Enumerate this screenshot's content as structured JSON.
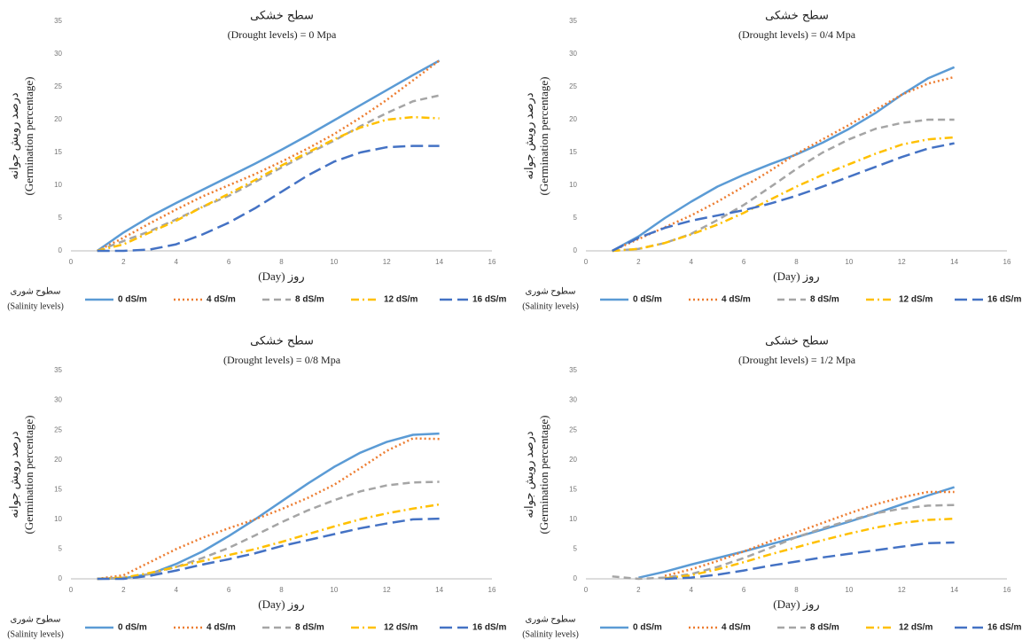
{
  "chart_data": [
    {
      "type": "line",
      "title": "سطح خشکی",
      "subtitle": "(Drought levels) = 0 Mpa",
      "ylabel": [
        "درصد رویش جوانه",
        "(Germination percentage)"
      ],
      "xlabel": "(Day) روز",
      "legend_title": [
        "سطوح شوری",
        "(Salinity levels)"
      ],
      "xlim": [
        0,
        16
      ],
      "xticks": [
        0,
        2,
        4,
        6,
        8,
        10,
        12,
        14,
        16
      ],
      "ylim": [
        0,
        35
      ],
      "yticks": [
        0,
        5,
        10,
        15,
        20,
        25,
        30,
        35
      ],
      "grid": false,
      "x": [
        1,
        2,
        3,
        4,
        5,
        6,
        7,
        8,
        9,
        10,
        11,
        12,
        13,
        14
      ],
      "series": [
        {
          "name": "0 dS/m",
          "color": "#5b9bd5",
          "line_style": "solid",
          "values": [
            0,
            2.8,
            5.2,
            7.3,
            9.3,
            11.3,
            13.3,
            15.4,
            17.6,
            19.9,
            22.2,
            24.5,
            26.8,
            29
          ]
        },
        {
          "name": "4 dS/m",
          "color": "#ed7d31",
          "line_style": "dotted",
          "values": [
            0,
            2,
            4.2,
            6.3,
            8.3,
            10,
            11.7,
            13.6,
            15.6,
            17.8,
            20.3,
            23,
            26,
            29
          ]
        },
        {
          "name": "8 dS/m",
          "color": "#a5a5a5",
          "line_style": "dashed",
          "values": [
            0,
            1.5,
            3,
            4.8,
            6.7,
            8.4,
            10.5,
            12.7,
            14.8,
            16.8,
            19,
            21,
            22.8,
            23.7
          ]
        },
        {
          "name": "12 dS/m",
          "color": "#ffc000",
          "line_style": "dashdot",
          "values": [
            0,
            1,
            2.8,
            4.6,
            6.7,
            8.7,
            10.8,
            13,
            15,
            17,
            18.8,
            20,
            20.4,
            20.2
          ]
        },
        {
          "name": "16 dS/m",
          "color": "#4472c4",
          "line_style": "longdash",
          "values": [
            0,
            0,
            0.2,
            1,
            2.5,
            4.3,
            6.5,
            9,
            11.5,
            13.6,
            15,
            15.8,
            16,
            16
          ]
        }
      ]
    },
    {
      "type": "line",
      "title": "سطح خشکی",
      "subtitle": "(Drought levels) = 0/4 Mpa",
      "ylabel": [
        "درصد رویش جوانه",
        "(Germination percentage)"
      ],
      "xlabel": "(Day) روز",
      "legend_title": [
        "سطوح شوری",
        "(Salinity levels)"
      ],
      "xlim": [
        0,
        16
      ],
      "xticks": [
        0,
        2,
        4,
        6,
        8,
        10,
        12,
        14,
        16
      ],
      "ylim": [
        0,
        35
      ],
      "yticks": [
        0,
        5,
        10,
        15,
        20,
        25,
        30,
        35
      ],
      "grid": false,
      "x": [
        1,
        2,
        3,
        4,
        5,
        6,
        7,
        8,
        9,
        10,
        11,
        12,
        13,
        14
      ],
      "series": [
        {
          "name": "0 dS/m",
          "color": "#5b9bd5",
          "line_style": "solid",
          "values": [
            0,
            2.2,
            5,
            7.5,
            9.8,
            11.6,
            13.2,
            14.7,
            16.5,
            18.6,
            21,
            23.8,
            26.3,
            28
          ]
        },
        {
          "name": "4 dS/m",
          "color": "#ed7d31",
          "line_style": "dotted",
          "values": [
            0,
            1.8,
            3.6,
            5.4,
            7.5,
            9.8,
            12.2,
            14.8,
            17,
            19.2,
            21.5,
            23.8,
            25.5,
            26.5
          ]
        },
        {
          "name": "8 dS/m",
          "color": "#a5a5a5",
          "line_style": "dashed",
          "values": [
            0,
            0.3,
            1.2,
            2.6,
            4.7,
            7,
            9.7,
            12.5,
            15,
            17,
            18.6,
            19.5,
            20,
            20
          ]
        },
        {
          "name": "12 dS/m",
          "color": "#ffc000",
          "line_style": "dashdot",
          "values": [
            0,
            0.3,
            1.2,
            2.5,
            4,
            5.8,
            7.8,
            9.8,
            11.6,
            13.2,
            14.8,
            16.2,
            17,
            17.3
          ]
        },
        {
          "name": "16 dS/m",
          "color": "#4472c4",
          "line_style": "longdash",
          "values": [
            0,
            2,
            3.5,
            4.6,
            5.4,
            6.2,
            7.2,
            8.4,
            9.8,
            11.3,
            12.8,
            14.3,
            15.6,
            16.4
          ]
        }
      ]
    },
    {
      "type": "line",
      "title": "سطح خشکی",
      "subtitle": "(Drought levels) = 0/8 Mpa",
      "ylabel": [
        "درصد رویش جوانه",
        "(Germination percentage)"
      ],
      "xlabel": "(Day) روز",
      "legend_title": [
        "سطوح شوری",
        "(Salinity levels)"
      ],
      "xlim": [
        0,
        16
      ],
      "xticks": [
        0,
        2,
        4,
        6,
        8,
        10,
        12,
        14,
        16
      ],
      "ylim": [
        0,
        35
      ],
      "yticks": [
        0,
        5,
        10,
        15,
        20,
        25,
        30,
        35
      ],
      "grid": false,
      "x": [
        1,
        2,
        3,
        4,
        5,
        6,
        7,
        8,
        9,
        10,
        11,
        12,
        13,
        14
      ],
      "series": [
        {
          "name": "0 dS/m",
          "color": "#5b9bd5",
          "line_style": "solid",
          "values": [
            0,
            0.1,
            0.8,
            2.5,
            4.6,
            7.2,
            10,
            13,
            16,
            18.8,
            21.2,
            23,
            24.2,
            24.4
          ]
        },
        {
          "name": "4 dS/m",
          "color": "#ed7d31",
          "line_style": "dotted",
          "values": [
            0,
            0.6,
            2.8,
            5,
            6.9,
            8.5,
            10,
            11.7,
            13.6,
            15.8,
            18.6,
            21.5,
            23.6,
            23.5
          ]
        },
        {
          "name": "8 dS/m",
          "color": "#a5a5a5",
          "line_style": "dashed",
          "values": [
            0,
            0.2,
            0.8,
            2,
            3.5,
            5.2,
            7.3,
            9.5,
            11.5,
            13.2,
            14.7,
            15.7,
            16.2,
            16.3
          ]
        },
        {
          "name": "12 dS/m",
          "color": "#ffc000",
          "line_style": "dashdot",
          "values": [
            0,
            0.2,
            1,
            2,
            3,
            4,
            5,
            6.2,
            7.5,
            8.8,
            10,
            11,
            11.8,
            12.5
          ]
        },
        {
          "name": "16 dS/m",
          "color": "#4472c4",
          "line_style": "longdash",
          "values": [
            0,
            0,
            0.5,
            1.4,
            2.4,
            3.3,
            4.3,
            5.5,
            6.5,
            7.5,
            8.5,
            9.3,
            10,
            10.1
          ]
        }
      ]
    },
    {
      "type": "line",
      "title": "سطح خشکی",
      "subtitle": "(Drought levels) = 1/2 Mpa",
      "ylabel": [
        "درصد رویش جوانه",
        "(Germination percentage)"
      ],
      "xlabel": "(Day) روز",
      "legend_title": [
        "سطوح شوری",
        "(Salinity levels)"
      ],
      "xlim": [
        0,
        16
      ],
      "xticks": [
        0,
        2,
        4,
        6,
        8,
        10,
        12,
        14,
        16
      ],
      "ylim": [
        0,
        35
      ],
      "yticks": [
        0,
        5,
        10,
        15,
        20,
        25,
        30,
        35
      ],
      "grid": false,
      "x": [
        1,
        2,
        3,
        4,
        5,
        6,
        7,
        8,
        9,
        10,
        11,
        12,
        13,
        14
      ],
      "series": [
        {
          "name": "0 dS/m",
          "color": "#5b9bd5",
          "line_style": "solid",
          "values": [
            null,
            0.2,
            1.2,
            2.4,
            3.5,
            4.6,
            5.8,
            7,
            8.3,
            9.6,
            11,
            12.5,
            14,
            15.4
          ]
        },
        {
          "name": "4 dS/m",
          "color": "#ed7d31",
          "line_style": "dotted",
          "values": [
            null,
            null,
            0.5,
            1.6,
            3,
            4.6,
            6.3,
            7.8,
            9.4,
            11,
            12.5,
            13.7,
            14.6,
            14.6
          ]
        },
        {
          "name": "8 dS/m",
          "color": "#a5a5a5",
          "line_style": "dashed",
          "values": [
            0.4,
            0,
            0.2,
            0.8,
            2,
            3.5,
            5.2,
            7,
            8.5,
            9.8,
            11,
            11.8,
            12.3,
            12.4
          ]
        },
        {
          "name": "12 dS/m",
          "color": "#ffc000",
          "line_style": "dashdot",
          "values": [
            null,
            null,
            0.1,
            0.6,
            1.6,
            2.8,
            4.1,
            5.3,
            6.5,
            7.6,
            8.6,
            9.4,
            9.9,
            10.1
          ]
        },
        {
          "name": "16 dS/m",
          "color": "#4472c4",
          "line_style": "longdash",
          "values": [
            null,
            null,
            0,
            0.2,
            0.7,
            1.4,
            2.2,
            2.9,
            3.6,
            4.2,
            4.8,
            5.4,
            6,
            6.1
          ]
        }
      ]
    }
  ]
}
